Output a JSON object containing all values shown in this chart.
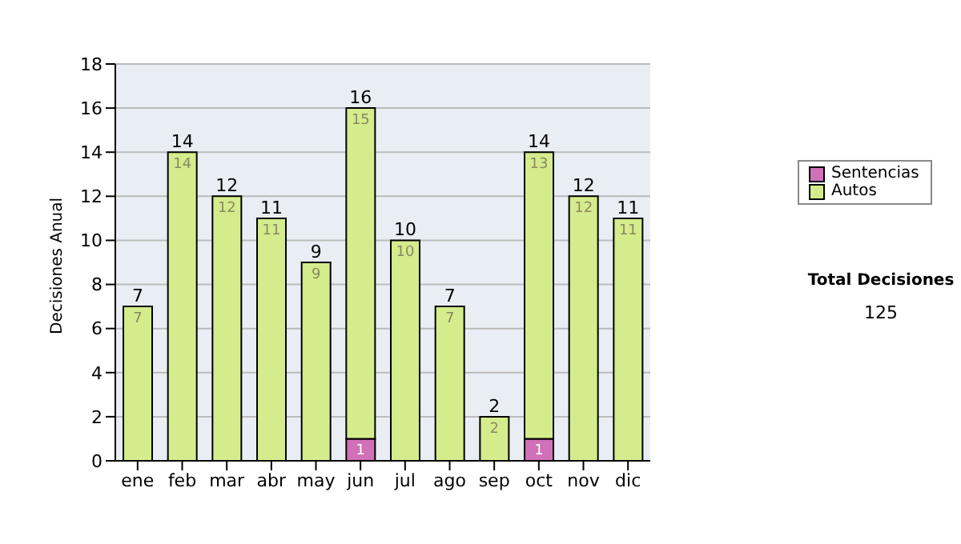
{
  "chart_data": {
    "type": "bar",
    "stacked": true,
    "ylabel": "Decisiones Anual",
    "categories": [
      "ene",
      "feb",
      "mar",
      "abr",
      "may",
      "jun",
      "jul",
      "ago",
      "sep",
      "oct",
      "nov",
      "dic"
    ],
    "series": [
      {
        "name": "Sentencias",
        "color": "#d070b8",
        "values": [
          0,
          0,
          0,
          0,
          0,
          1,
          0,
          0,
          0,
          1,
          0,
          0
        ],
        "value_labels": [
          null,
          null,
          null,
          null,
          null,
          "1",
          null,
          null,
          null,
          "1",
          null,
          null
        ]
      },
      {
        "name": "Autos",
        "color": "#d4ec8c",
        "values": [
          7,
          14,
          12,
          11,
          9,
          15,
          10,
          7,
          2,
          13,
          12,
          11
        ],
        "value_labels": [
          "7",
          "14",
          "12",
          "11",
          "9",
          "15",
          "10",
          "7",
          "2",
          "13",
          "12",
          "11"
        ]
      }
    ],
    "totals": [
      "7",
      "14",
      "12",
      "11",
      "9",
      "16",
      "10",
      "7",
      "2",
      "14",
      "12",
      "11"
    ],
    "ylim": [
      0,
      18
    ],
    "yticks": [
      0,
      2,
      4,
      6,
      8,
      10,
      12,
      14,
      16,
      18
    ],
    "grid": "y",
    "legend": "right",
    "annotations": [
      "Total Decisiones",
      "125"
    ]
  }
}
